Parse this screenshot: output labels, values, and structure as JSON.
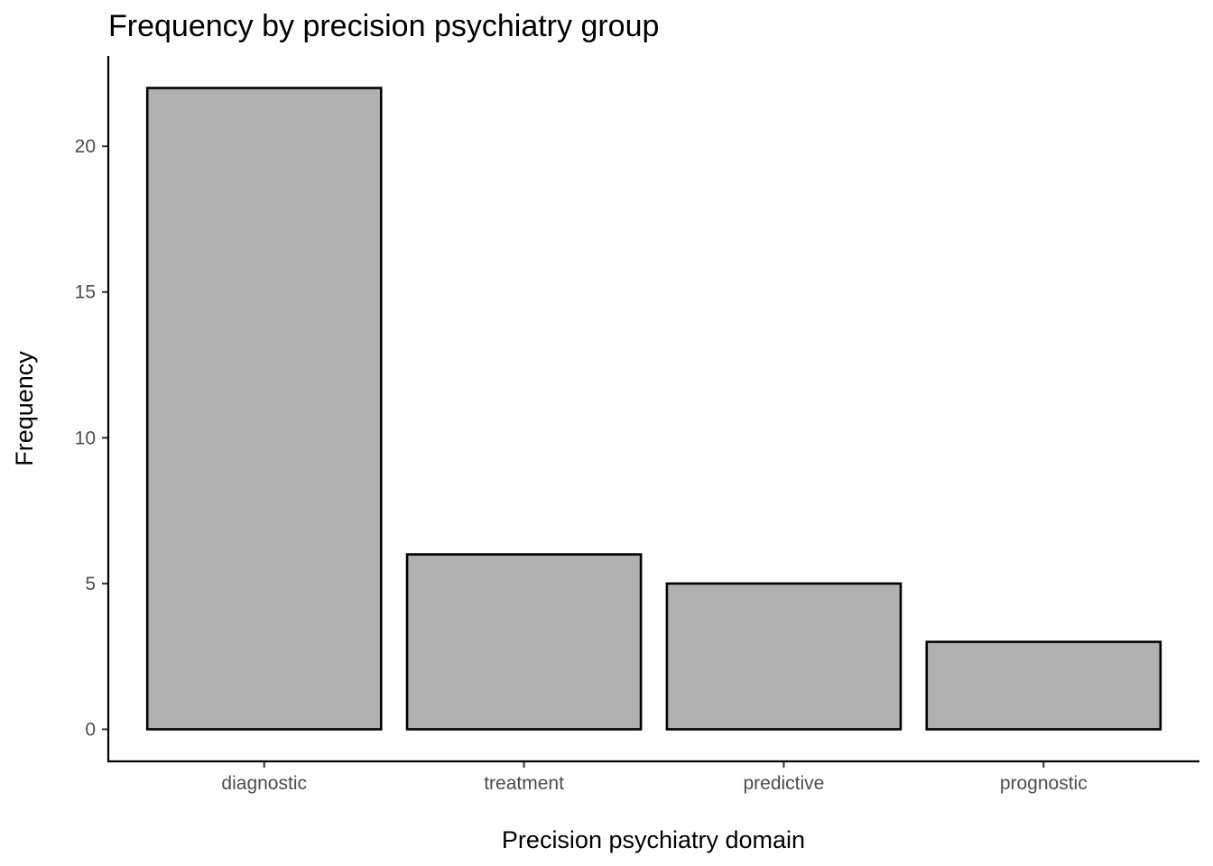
{
  "chart_data": {
    "type": "bar",
    "title": "Frequency by precision psychiatry group",
    "xlabel": "Precision psychiatry domain",
    "ylabel": "Frequency",
    "categories": [
      "diagnostic",
      "treatment",
      "predictive",
      "prognostic"
    ],
    "values": [
      22,
      6,
      5,
      3
    ],
    "ylim": [
      -1.1,
      23.1
    ],
    "yticks": [
      0,
      5,
      10,
      15,
      20
    ],
    "ytick_labels": [
      "0",
      "5",
      "10",
      "15",
      "20"
    ],
    "grid": false,
    "legend": "none",
    "bar_fill": "#b0b0b0",
    "bar_outline": "#000000"
  }
}
